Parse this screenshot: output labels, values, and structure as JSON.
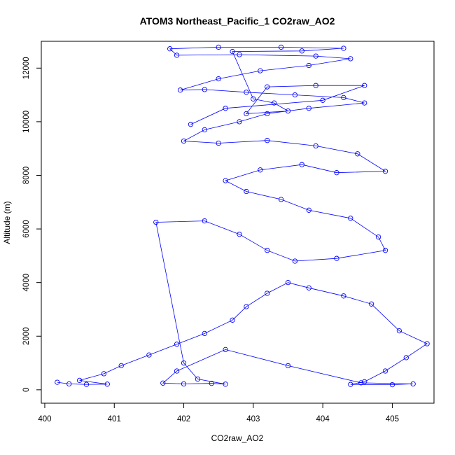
{
  "chart_data": {
    "type": "scatter",
    "title": "ATOM3 Northeast_Pacific_1 CO2raw_AO2",
    "xlabel": "CO2raw_AO2",
    "ylabel": "Altitude (m)",
    "xlim": [
      399.95,
      405.6
    ],
    "ylim": [
      -500,
      13000
    ],
    "xticks": [
      400,
      401,
      402,
      403,
      404,
      405
    ],
    "yticks": [
      0,
      2000,
      4000,
      6000,
      8000,
      10000,
      12000
    ],
    "xtick_labels": [
      "400",
      "401",
      "402",
      "403",
      "404",
      "405"
    ],
    "ytick_labels": [
      "0",
      "2000",
      "4000",
      "6000",
      "8000",
      "10000",
      "12000"
    ],
    "grid": false,
    "style": "open circles connected by lines (type='o')",
    "series_color": "#0000ff",
    "series": [
      {
        "name": "",
        "points": [
          [
            400.18,
            280
          ],
          [
            400.35,
            220
          ],
          [
            400.6,
            200
          ],
          [
            400.9,
            210
          ],
          [
            400.5,
            350
          ],
          [
            400.85,
            600
          ],
          [
            401.1,
            900
          ],
          [
            401.5,
            1300
          ],
          [
            401.9,
            1700
          ],
          [
            402.3,
            2100
          ],
          [
            402.7,
            2600
          ],
          [
            402.9,
            3100
          ],
          [
            403.2,
            3600
          ],
          [
            403.5,
            4000
          ],
          [
            403.8,
            3800
          ],
          [
            404.3,
            3500
          ],
          [
            404.7,
            3200
          ],
          [
            405.1,
            2200
          ],
          [
            405.5,
            1720
          ],
          [
            405.2,
            1200
          ],
          [
            404.9,
            700
          ],
          [
            404.6,
            300
          ],
          [
            404.4,
            200
          ],
          [
            405.0,
            190
          ],
          [
            405.3,
            220
          ],
          [
            404.55,
            260
          ],
          [
            403.5,
            900
          ],
          [
            402.6,
            1500
          ],
          [
            401.9,
            700
          ],
          [
            401.7,
            250
          ],
          [
            402.0,
            220
          ],
          [
            402.4,
            240
          ],
          [
            402.6,
            210
          ],
          [
            402.2,
            400
          ],
          [
            402.0,
            1000
          ],
          [
            401.6,
            6250
          ],
          [
            402.3,
            6300
          ],
          [
            402.8,
            5800
          ],
          [
            403.2,
            5200
          ],
          [
            403.6,
            4800
          ],
          [
            404.2,
            4900
          ],
          [
            404.9,
            5200
          ],
          [
            404.8,
            5700
          ],
          [
            404.4,
            6400
          ],
          [
            403.8,
            6700
          ],
          [
            403.4,
            7100
          ],
          [
            402.9,
            7400
          ],
          [
            402.6,
            7800
          ],
          [
            403.1,
            8200
          ],
          [
            403.7,
            8400
          ],
          [
            404.2,
            8100
          ],
          [
            404.9,
            8150
          ],
          [
            404.5,
            8800
          ],
          [
            403.9,
            9100
          ],
          [
            403.2,
            9300
          ],
          [
            402.5,
            9200
          ],
          [
            402.0,
            9280
          ],
          [
            402.3,
            9700
          ],
          [
            402.8,
            10000
          ],
          [
            403.2,
            10300
          ],
          [
            403.8,
            10500
          ],
          [
            404.6,
            10700
          ],
          [
            404.3,
            10900
          ],
          [
            403.6,
            11000
          ],
          [
            402.9,
            11100
          ],
          [
            402.3,
            11200
          ],
          [
            401.95,
            11180
          ],
          [
            402.5,
            11600
          ],
          [
            403.1,
            11900
          ],
          [
            403.8,
            12100
          ],
          [
            404.4,
            12350
          ],
          [
            403.9,
            12450
          ],
          [
            402.8,
            12500
          ],
          [
            401.9,
            12480
          ],
          [
            401.8,
            12720
          ],
          [
            402.5,
            12780
          ],
          [
            403.4,
            12780
          ],
          [
            404.3,
            12740
          ],
          [
            403.7,
            12640
          ],
          [
            402.7,
            12620
          ],
          [
            403.0,
            10850
          ],
          [
            403.3,
            10700
          ],
          [
            403.5,
            10400
          ],
          [
            402.9,
            10300
          ],
          [
            403.2,
            11300
          ],
          [
            403.9,
            11350
          ],
          [
            404.6,
            11350
          ],
          [
            404.0,
            10800
          ],
          [
            402.6,
            10500
          ],
          [
            402.1,
            9900
          ]
        ]
      }
    ]
  }
}
